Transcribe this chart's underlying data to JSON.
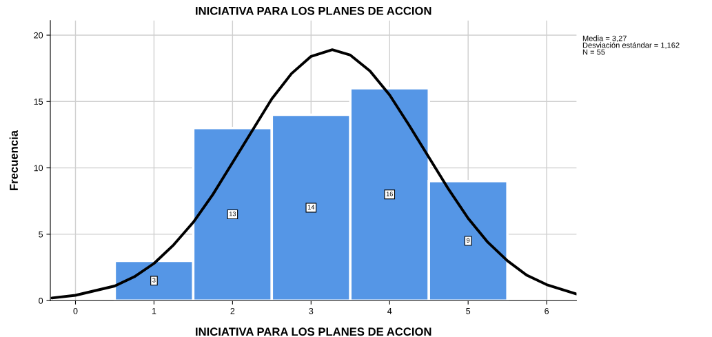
{
  "chart_data": {
    "type": "histogram",
    "title": "INICIATIVA PARA LOS PLANES DE ACCION",
    "xlabel": "INICIATIVA PARA LOS PLANES DE ACCION",
    "ylabel": "Frecuencia",
    "bins": [
      0.5,
      1.5,
      2.5,
      3.5,
      4.5,
      5.5
    ],
    "values": [
      3,
      13,
      14,
      16,
      9
    ],
    "color": "#5596e6",
    "value_labels": [
      "3",
      "13",
      "14",
      "16",
      "9"
    ],
    "series": [
      {
        "type": "line",
        "color": "#000000",
        "x": [
          -0.3,
          0,
          0.5,
          0.75,
          1,
          1.25,
          1.5,
          1.75,
          2,
          2.25,
          2.5,
          2.75,
          3,
          3.27,
          3.5,
          3.75,
          4,
          4.25,
          4.5,
          4.75,
          5,
          5.25,
          5.5,
          5.75,
          6,
          6.38
        ],
        "values": [
          0.2,
          0.4,
          1.1,
          1.8,
          2.8,
          4.2,
          5.9,
          8.0,
          10.4,
          12.8,
          15.2,
          17.1,
          18.4,
          18.9,
          18.5,
          17.3,
          15.5,
          13.2,
          10.8,
          8.4,
          6.2,
          4.4,
          3.0,
          1.9,
          1.2,
          0.5
        ]
      }
    ],
    "xlim": [
      -0.32,
      6.38
    ],
    "xticks": [
      0,
      1,
      2,
      3,
      4,
      5,
      6
    ],
    "ylim": [
      0,
      21.1
    ],
    "yticks": [
      0,
      5,
      10,
      15,
      20
    ],
    "grid": true,
    "annotations": [
      "Media = 3,27\nDesviación estándar = 1,162\nN = 55"
    ]
  }
}
